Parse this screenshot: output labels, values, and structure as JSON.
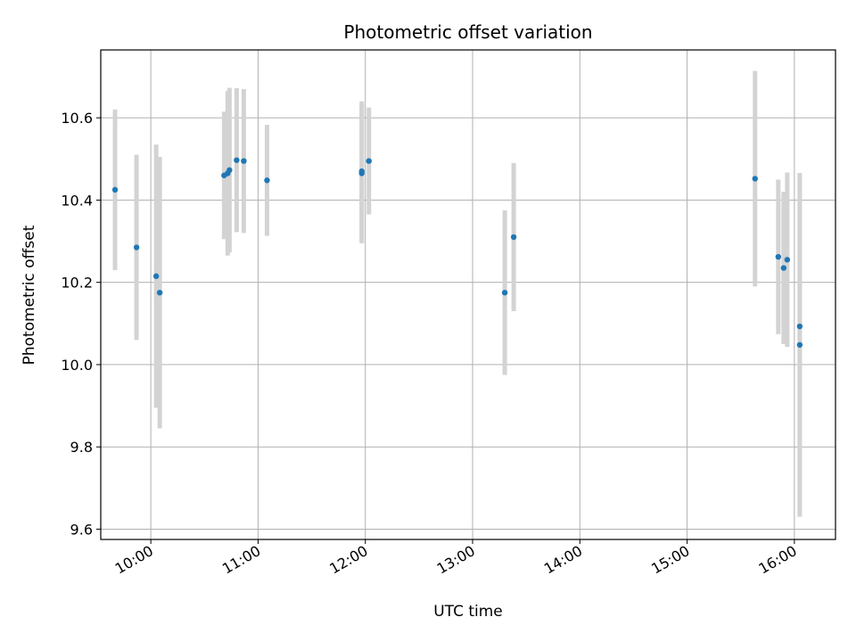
{
  "chart_data": {
    "type": "scatter",
    "title": "Photometric offset variation",
    "xlabel": "UTC time",
    "ylabel": "Photometric offset",
    "xlim": [
      "09:32",
      "16:23"
    ],
    "ylim": [
      9.575,
      10.765
    ],
    "grid": true,
    "xticks": [
      {
        "time": "10:00",
        "label": "10:00"
      },
      {
        "time": "11:00",
        "label": "11:00"
      },
      {
        "time": "12:00",
        "label": "12:00"
      },
      {
        "time": "13:00",
        "label": "13:00"
      },
      {
        "time": "14:00",
        "label": "14:00"
      },
      {
        "time": "15:00",
        "label": "15:00"
      },
      {
        "time": "16:00",
        "label": "16:00"
      }
    ],
    "yticks": [
      {
        "value": 9.6,
        "label": "9.6"
      },
      {
        "value": 9.8,
        "label": "9.8"
      },
      {
        "value": 10.0,
        "label": "10.0"
      },
      {
        "value": 10.2,
        "label": "10.2"
      },
      {
        "value": 10.4,
        "label": "10.4"
      },
      {
        "value": 10.6,
        "label": "10.6"
      }
    ],
    "colors": {
      "point": "#1f77b4",
      "errorbar": "#d3d3d3",
      "grid": "#b0b0b0",
      "frame": "#000000"
    },
    "points": [
      {
        "t": "09:40",
        "y": 10.425,
        "err": 0.195
      },
      {
        "t": "09:52",
        "y": 10.285,
        "err": 0.225
      },
      {
        "t": "10:03",
        "y": 10.215,
        "err": 0.32
      },
      {
        "t": "10:05",
        "y": 10.175,
        "err": 0.33
      },
      {
        "t": "10:41",
        "y": 10.46,
        "err": 0.155
      },
      {
        "t": "10:43",
        "y": 10.465,
        "err": 0.2
      },
      {
        "t": "10:44",
        "y": 10.473,
        "err": 0.2
      },
      {
        "t": "10:48",
        "y": 10.497,
        "err": 0.175
      },
      {
        "t": "10:52",
        "y": 10.495,
        "err": 0.175
      },
      {
        "t": "11:05",
        "y": 10.448,
        "err": 0.135
      },
      {
        "t": "11:58",
        "y": 10.465,
        "err": 0.17
      },
      {
        "t": "11:58",
        "y": 10.47,
        "err": 0.17
      },
      {
        "t": "12:02",
        "y": 10.495,
        "err": 0.13
      },
      {
        "t": "13:18",
        "y": 10.175,
        "err": 0.2
      },
      {
        "t": "13:23",
        "y": 10.31,
        "err": 0.18
      },
      {
        "t": "15:38",
        "y": 10.452,
        "err": 0.262
      },
      {
        "t": "15:51",
        "y": 10.262,
        "err": 0.188
      },
      {
        "t": "15:54",
        "y": 10.235,
        "err": 0.185
      },
      {
        "t": "15:56",
        "y": 10.255,
        "err": 0.212
      },
      {
        "t": "16:03",
        "y": 10.093,
        "err": 0.372
      },
      {
        "t": "16:03",
        "y": 10.048,
        "err": 0.418
      }
    ]
  }
}
